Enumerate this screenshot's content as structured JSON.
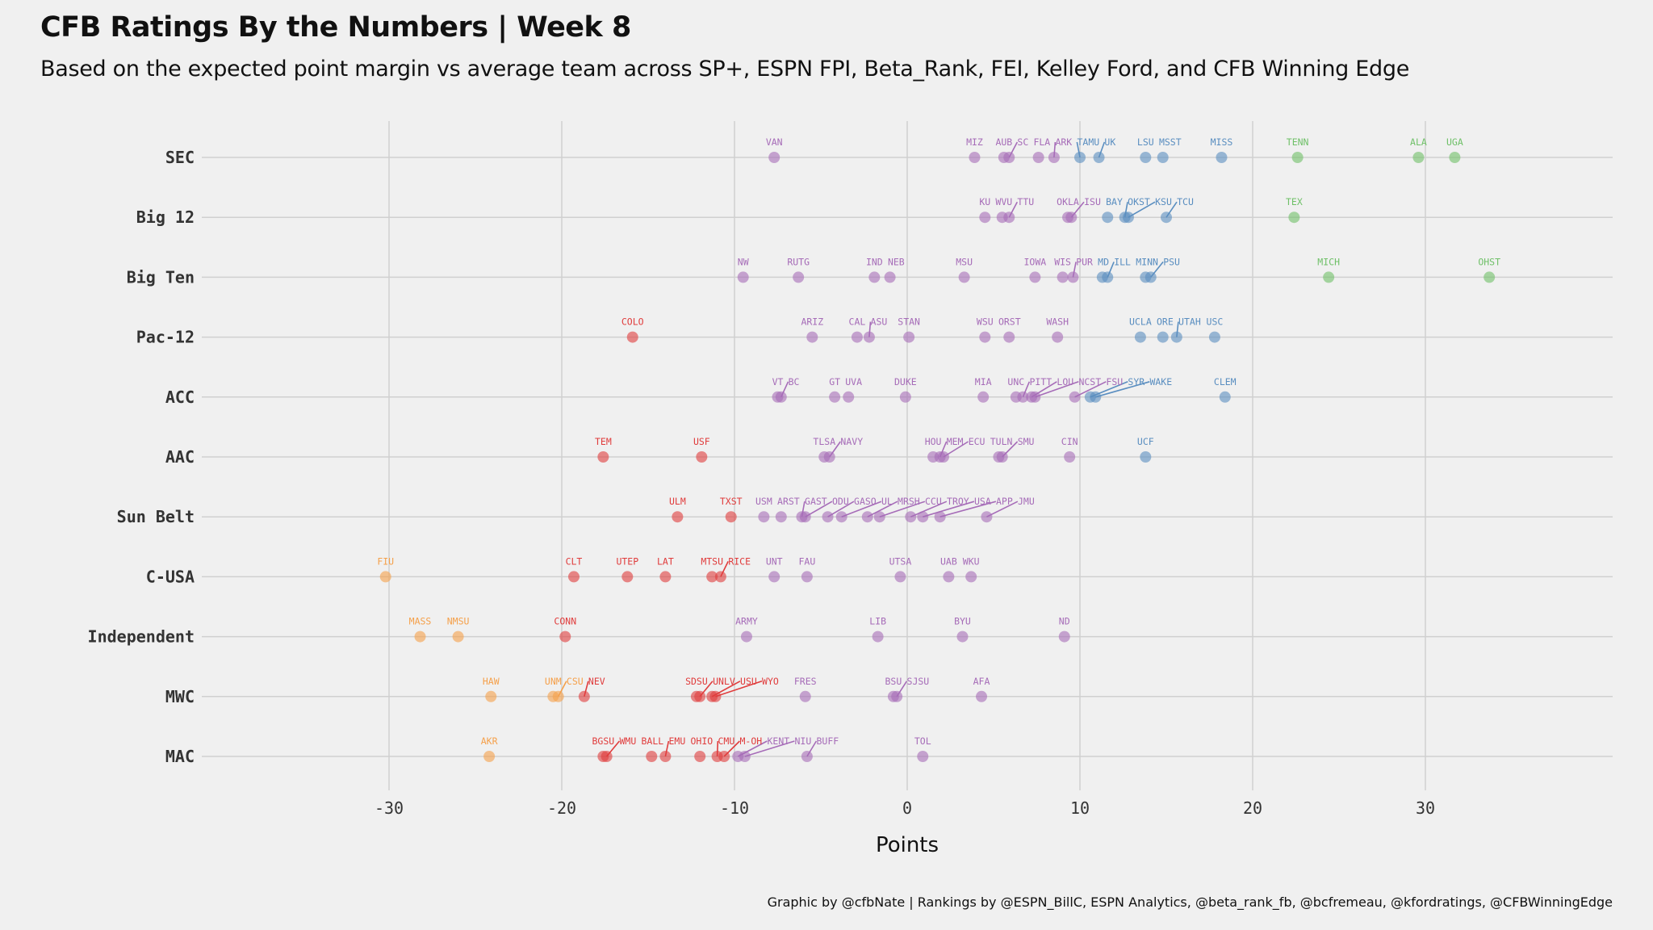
{
  "title": "CFB Ratings By the Numbers | Week 8",
  "subtitle": "Based on the expected point margin vs average team across SP+, ESPN FPI, Beta_Rank, FEI, Kelley Ford, and CFB Winning Edge",
  "caption": "Graphic by @cfbNate | Rankings by @ESPN_BillC, ESPN Analytics, @beta_rank_fb, @bcfremeau, @kfordratings, @CFBWinningEdge",
  "colors": {
    "background": "#f0f0f0",
    "grid": "#d0d0d0",
    "tier_green": "#6fc068",
    "tier_blue": "#5a8ec0",
    "tier_purple": "#a66cb8",
    "tier_red": "#e03c3c",
    "tier_orange": "#f5a04a"
  },
  "chart_data": {
    "type": "scatter",
    "xlabel": "Points",
    "xlim": [
      -40,
      41
    ],
    "xticks": [
      -30,
      -20,
      -10,
      0,
      10,
      20,
      30
    ],
    "categories": [
      "SEC",
      "Big 12",
      "Big Ten",
      "Pac-12",
      "ACC",
      "AAC",
      "Sun Belt",
      "C-USA",
      "Independent",
      "MWC",
      "MAC"
    ],
    "grid": true,
    "points": [
      {
        "conf": "SEC",
        "team": "VAN",
        "x": -7.7,
        "tier": "purple"
      },
      {
        "conf": "SEC",
        "team": "MIZ",
        "x": 3.9,
        "tier": "purple"
      },
      {
        "conf": "SEC",
        "team": "AUB",
        "x": 5.6,
        "tier": "purple"
      },
      {
        "conf": "SEC",
        "team": "SC",
        "x": 5.9,
        "tier": "purple"
      },
      {
        "conf": "SEC",
        "team": "FLA",
        "x": 7.6,
        "tier": "purple"
      },
      {
        "conf": "SEC",
        "team": "ARK",
        "x": 8.5,
        "tier": "purple"
      },
      {
        "conf": "SEC",
        "team": "TAMU",
        "x": 10.0,
        "tier": "blue"
      },
      {
        "conf": "SEC",
        "team": "UK",
        "x": 11.1,
        "tier": "blue"
      },
      {
        "conf": "SEC",
        "team": "LSU",
        "x": 13.8,
        "tier": "blue"
      },
      {
        "conf": "SEC",
        "team": "MSST",
        "x": 14.8,
        "tier": "blue"
      },
      {
        "conf": "SEC",
        "team": "MISS",
        "x": 18.2,
        "tier": "blue"
      },
      {
        "conf": "SEC",
        "team": "TENN",
        "x": 22.6,
        "tier": "green"
      },
      {
        "conf": "SEC",
        "team": "ALA",
        "x": 29.6,
        "tier": "green"
      },
      {
        "conf": "SEC",
        "team": "UGA",
        "x": 31.7,
        "tier": "green"
      },
      {
        "conf": "Big 12",
        "team": "KU",
        "x": 4.5,
        "tier": "purple"
      },
      {
        "conf": "Big 12",
        "team": "WVU",
        "x": 5.5,
        "tier": "purple"
      },
      {
        "conf": "Big 12",
        "team": "TTU",
        "x": 5.9,
        "tier": "purple"
      },
      {
        "conf": "Big 12",
        "team": "OKLA",
        "x": 9.3,
        "tier": "purple"
      },
      {
        "conf": "Big 12",
        "team": "ISU",
        "x": 9.5,
        "tier": "purple"
      },
      {
        "conf": "Big 12",
        "team": "BAY",
        "x": 11.6,
        "tier": "blue"
      },
      {
        "conf": "Big 12",
        "team": "OKST",
        "x": 12.6,
        "tier": "blue"
      },
      {
        "conf": "Big 12",
        "team": "KSU",
        "x": 12.8,
        "tier": "blue"
      },
      {
        "conf": "Big 12",
        "team": "TCU",
        "x": 15.0,
        "tier": "blue"
      },
      {
        "conf": "Big 12",
        "team": "TEX",
        "x": 22.4,
        "tier": "green"
      },
      {
        "conf": "Big Ten",
        "team": "NW",
        "x": -9.5,
        "tier": "purple"
      },
      {
        "conf": "Big Ten",
        "team": "RUTG",
        "x": -6.3,
        "tier": "purple"
      },
      {
        "conf": "Big Ten",
        "team": "IND",
        "x": -1.9,
        "tier": "purple"
      },
      {
        "conf": "Big Ten",
        "team": "NEB",
        "x": -1.0,
        "tier": "purple"
      },
      {
        "conf": "Big Ten",
        "team": "MSU",
        "x": 3.3,
        "tier": "purple"
      },
      {
        "conf": "Big Ten",
        "team": "IOWA",
        "x": 7.4,
        "tier": "purple"
      },
      {
        "conf": "Big Ten",
        "team": "WIS",
        "x": 9.0,
        "tier": "purple"
      },
      {
        "conf": "Big Ten",
        "team": "PUR",
        "x": 9.6,
        "tier": "purple"
      },
      {
        "conf": "Big Ten",
        "team": "MD",
        "x": 11.3,
        "tier": "blue"
      },
      {
        "conf": "Big Ten",
        "team": "ILL",
        "x": 11.6,
        "tier": "blue"
      },
      {
        "conf": "Big Ten",
        "team": "MINN",
        "x": 13.8,
        "tier": "blue"
      },
      {
        "conf": "Big Ten",
        "team": "PSU",
        "x": 14.1,
        "tier": "blue"
      },
      {
        "conf": "Big Ten",
        "team": "MICH",
        "x": 24.4,
        "tier": "green"
      },
      {
        "conf": "Big Ten",
        "team": "OHST",
        "x": 33.7,
        "tier": "green"
      },
      {
        "conf": "Pac-12",
        "team": "COLO",
        "x": -15.9,
        "tier": "red"
      },
      {
        "conf": "Pac-12",
        "team": "ARIZ",
        "x": -5.5,
        "tier": "purple"
      },
      {
        "conf": "Pac-12",
        "team": "CAL",
        "x": -2.9,
        "tier": "purple"
      },
      {
        "conf": "Pac-12",
        "team": "ASU",
        "x": -2.2,
        "tier": "purple"
      },
      {
        "conf": "Pac-12",
        "team": "STAN",
        "x": 0.1,
        "tier": "purple"
      },
      {
        "conf": "Pac-12",
        "team": "WSU",
        "x": 4.5,
        "tier": "purple"
      },
      {
        "conf": "Pac-12",
        "team": "ORST",
        "x": 5.9,
        "tier": "purple"
      },
      {
        "conf": "Pac-12",
        "team": "WASH",
        "x": 8.7,
        "tier": "purple"
      },
      {
        "conf": "Pac-12",
        "team": "UCLA",
        "x": 13.5,
        "tier": "blue"
      },
      {
        "conf": "Pac-12",
        "team": "ORE",
        "x": 14.8,
        "tier": "blue"
      },
      {
        "conf": "Pac-12",
        "team": "UTAH",
        "x": 15.6,
        "tier": "blue"
      },
      {
        "conf": "Pac-12",
        "team": "USC",
        "x": 17.8,
        "tier": "blue"
      },
      {
        "conf": "ACC",
        "team": "VT",
        "x": -7.5,
        "tier": "purple"
      },
      {
        "conf": "ACC",
        "team": "BC",
        "x": -7.3,
        "tier": "purple"
      },
      {
        "conf": "ACC",
        "team": "GT",
        "x": -4.2,
        "tier": "purple"
      },
      {
        "conf": "ACC",
        "team": "UVA",
        "x": -3.4,
        "tier": "purple"
      },
      {
        "conf": "ACC",
        "team": "DUKE",
        "x": -0.1,
        "tier": "purple"
      },
      {
        "conf": "ACC",
        "team": "MIA",
        "x": 4.4,
        "tier": "purple"
      },
      {
        "conf": "ACC",
        "team": "UNC",
        "x": 6.3,
        "tier": "purple"
      },
      {
        "conf": "ACC",
        "team": "PITT",
        "x": 6.7,
        "tier": "purple"
      },
      {
        "conf": "ACC",
        "team": "LOU",
        "x": 7.2,
        "tier": "purple"
      },
      {
        "conf": "ACC",
        "team": "NCST",
        "x": 7.4,
        "tier": "purple"
      },
      {
        "conf": "ACC",
        "team": "FSU",
        "x": 9.7,
        "tier": "purple"
      },
      {
        "conf": "ACC",
        "team": "SYR",
        "x": 10.6,
        "tier": "blue"
      },
      {
        "conf": "ACC",
        "team": "WAKE",
        "x": 10.9,
        "tier": "blue"
      },
      {
        "conf": "ACC",
        "team": "CLEM",
        "x": 18.4,
        "tier": "blue"
      },
      {
        "conf": "AAC",
        "team": "TEM",
        "x": -17.6,
        "tier": "red"
      },
      {
        "conf": "AAC",
        "team": "USF",
        "x": -11.9,
        "tier": "red"
      },
      {
        "conf": "AAC",
        "team": "TLSA",
        "x": -4.8,
        "tier": "purple"
      },
      {
        "conf": "AAC",
        "team": "NAVY",
        "x": -4.5,
        "tier": "purple"
      },
      {
        "conf": "AAC",
        "team": "HOU",
        "x": 1.5,
        "tier": "purple"
      },
      {
        "conf": "AAC",
        "team": "MEM",
        "x": 1.9,
        "tier": "purple"
      },
      {
        "conf": "AAC",
        "team": "ECU",
        "x": 2.1,
        "tier": "purple"
      },
      {
        "conf": "AAC",
        "team": "TULN",
        "x": 5.3,
        "tier": "purple"
      },
      {
        "conf": "AAC",
        "team": "SMU",
        "x": 5.5,
        "tier": "purple"
      },
      {
        "conf": "AAC",
        "team": "CIN",
        "x": 9.4,
        "tier": "purple"
      },
      {
        "conf": "AAC",
        "team": "UCF",
        "x": 13.8,
        "tier": "blue"
      },
      {
        "conf": "Sun Belt",
        "team": "ULM",
        "x": -13.3,
        "tier": "red"
      },
      {
        "conf": "Sun Belt",
        "team": "TXST",
        "x": -10.2,
        "tier": "red"
      },
      {
        "conf": "Sun Belt",
        "team": "USM",
        "x": -8.3,
        "tier": "purple"
      },
      {
        "conf": "Sun Belt",
        "team": "ARST",
        "x": -7.3,
        "tier": "purple"
      },
      {
        "conf": "Sun Belt",
        "team": "GAST",
        "x": -6.1,
        "tier": "purple"
      },
      {
        "conf": "Sun Belt",
        "team": "ODU",
        "x": -5.9,
        "tier": "purple"
      },
      {
        "conf": "Sun Belt",
        "team": "GASO",
        "x": -4.6,
        "tier": "purple"
      },
      {
        "conf": "Sun Belt",
        "team": "UL",
        "x": -3.8,
        "tier": "purple"
      },
      {
        "conf": "Sun Belt",
        "team": "MRSH",
        "x": -2.3,
        "tier": "purple"
      },
      {
        "conf": "Sun Belt",
        "team": "CCU",
        "x": -1.6,
        "tier": "purple"
      },
      {
        "conf": "Sun Belt",
        "team": "TROY",
        "x": 0.2,
        "tier": "purple"
      },
      {
        "conf": "Sun Belt",
        "team": "USA",
        "x": 0.9,
        "tier": "purple"
      },
      {
        "conf": "Sun Belt",
        "team": "APP",
        "x": 1.9,
        "tier": "purple"
      },
      {
        "conf": "Sun Belt",
        "team": "JMU",
        "x": 4.6,
        "tier": "purple"
      },
      {
        "conf": "C-USA",
        "team": "FIU",
        "x": -30.2,
        "tier": "orange"
      },
      {
        "conf": "C-USA",
        "team": "CLT",
        "x": -19.3,
        "tier": "red"
      },
      {
        "conf": "C-USA",
        "team": "UTEP",
        "x": -16.2,
        "tier": "red"
      },
      {
        "conf": "C-USA",
        "team": "LAT",
        "x": -14.0,
        "tier": "red"
      },
      {
        "conf": "C-USA",
        "team": "MTSU",
        "x": -11.3,
        "tier": "red"
      },
      {
        "conf": "C-USA",
        "team": "RICE",
        "x": -10.8,
        "tier": "red"
      },
      {
        "conf": "C-USA",
        "team": "UNT",
        "x": -7.7,
        "tier": "purple"
      },
      {
        "conf": "C-USA",
        "team": "FAU",
        "x": -5.8,
        "tier": "purple"
      },
      {
        "conf": "C-USA",
        "team": "UTSA",
        "x": -0.4,
        "tier": "purple"
      },
      {
        "conf": "C-USA",
        "team": "UAB",
        "x": 2.4,
        "tier": "purple"
      },
      {
        "conf": "C-USA",
        "team": "WKU",
        "x": 3.7,
        "tier": "purple"
      },
      {
        "conf": "Independent",
        "team": "MASS",
        "x": -28.2,
        "tier": "orange"
      },
      {
        "conf": "Independent",
        "team": "NMSU",
        "x": -26.0,
        "tier": "orange"
      },
      {
        "conf": "Independent",
        "team": "CONN",
        "x": -19.8,
        "tier": "red"
      },
      {
        "conf": "Independent",
        "team": "ARMY",
        "x": -9.3,
        "tier": "purple"
      },
      {
        "conf": "Independent",
        "team": "LIB",
        "x": -1.7,
        "tier": "purple"
      },
      {
        "conf": "Independent",
        "team": "BYU",
        "x": 3.2,
        "tier": "purple"
      },
      {
        "conf": "Independent",
        "team": "ND",
        "x": 9.1,
        "tier": "purple"
      },
      {
        "conf": "MWC",
        "team": "HAW",
        "x": -24.1,
        "tier": "orange"
      },
      {
        "conf": "MWC",
        "team": "UNM",
        "x": -20.5,
        "tier": "orange"
      },
      {
        "conf": "MWC",
        "team": "CSU",
        "x": -20.2,
        "tier": "orange"
      },
      {
        "conf": "MWC",
        "team": "NEV",
        "x": -18.7,
        "tier": "red"
      },
      {
        "conf": "MWC",
        "team": "SDSU",
        "x": -12.2,
        "tier": "red"
      },
      {
        "conf": "MWC",
        "team": "UNLV",
        "x": -12.0,
        "tier": "red"
      },
      {
        "conf": "MWC",
        "team": "USU",
        "x": -11.3,
        "tier": "red"
      },
      {
        "conf": "MWC",
        "team": "WYO",
        "x": -11.1,
        "tier": "red"
      },
      {
        "conf": "MWC",
        "team": "FRES",
        "x": -5.9,
        "tier": "purple"
      },
      {
        "conf": "MWC",
        "team": "BSU",
        "x": -0.8,
        "tier": "purple"
      },
      {
        "conf": "MWC",
        "team": "SJSU",
        "x": -0.6,
        "tier": "purple"
      },
      {
        "conf": "MWC",
        "team": "AFA",
        "x": 4.3,
        "tier": "purple"
      },
      {
        "conf": "MAC",
        "team": "AKR",
        "x": -24.2,
        "tier": "orange"
      },
      {
        "conf": "MAC",
        "team": "BGSU",
        "x": -17.6,
        "tier": "red"
      },
      {
        "conf": "MAC",
        "team": "WMU",
        "x": -17.4,
        "tier": "red"
      },
      {
        "conf": "MAC",
        "team": "BALL",
        "x": -14.8,
        "tier": "red"
      },
      {
        "conf": "MAC",
        "team": "EMU",
        "x": -14.0,
        "tier": "red"
      },
      {
        "conf": "MAC",
        "team": "OHIO",
        "x": -12.0,
        "tier": "red"
      },
      {
        "conf": "MAC",
        "team": "CMU",
        "x": -11.0,
        "tier": "red"
      },
      {
        "conf": "MAC",
        "team": "M-OH",
        "x": -10.6,
        "tier": "red"
      },
      {
        "conf": "MAC",
        "team": "KENT",
        "x": -9.8,
        "tier": "purple"
      },
      {
        "conf": "MAC",
        "team": "NIU",
        "x": -9.4,
        "tier": "purple"
      },
      {
        "conf": "MAC",
        "team": "BUFF",
        "x": -5.8,
        "tier": "purple"
      },
      {
        "conf": "MAC",
        "team": "TOL",
        "x": 0.9,
        "tier": "purple"
      }
    ]
  }
}
